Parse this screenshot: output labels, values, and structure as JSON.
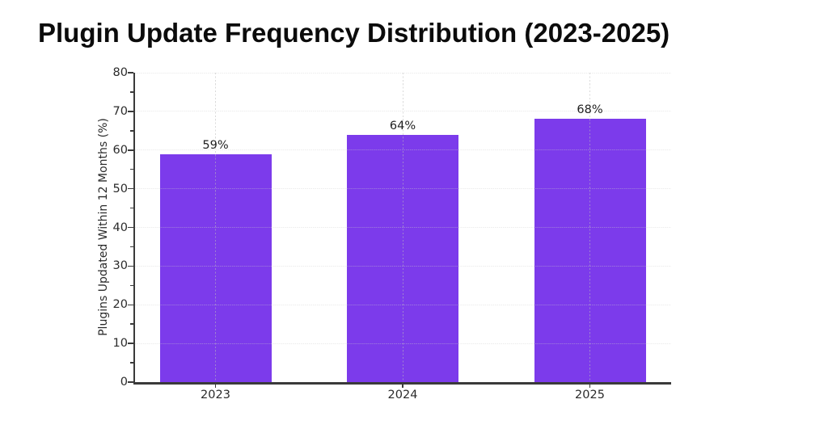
{
  "colors": {
    "background": "#ffffff",
    "title": "#0b0b0b",
    "bar": "#7c3beb",
    "axis": "#3a3a3a",
    "tick_label": "#2b2b2b",
    "value_label": "#1f1f1f",
    "grid_horizontal": "rgba(205,205,205,0.38)",
    "grid_vertical": "rgba(188,188,188,0.55)"
  },
  "chart_data": {
    "type": "bar",
    "title": "Plugin Update Frequency Distribution (2023-2025)",
    "categories": [
      "2023",
      "2024",
      "2025"
    ],
    "values": [
      59,
      64,
      68
    ],
    "value_labels": [
      "59%",
      "64%",
      "68%"
    ],
    "xlabel": "",
    "ylabel": "Plugins Updated Within 12 Months (%)",
    "ylim": [
      0,
      80
    ],
    "yticks": [
      0,
      10,
      20,
      30,
      40,
      50,
      60,
      70,
      80
    ],
    "minor_ytick_step": 5,
    "grid": true,
    "legend": false
  }
}
